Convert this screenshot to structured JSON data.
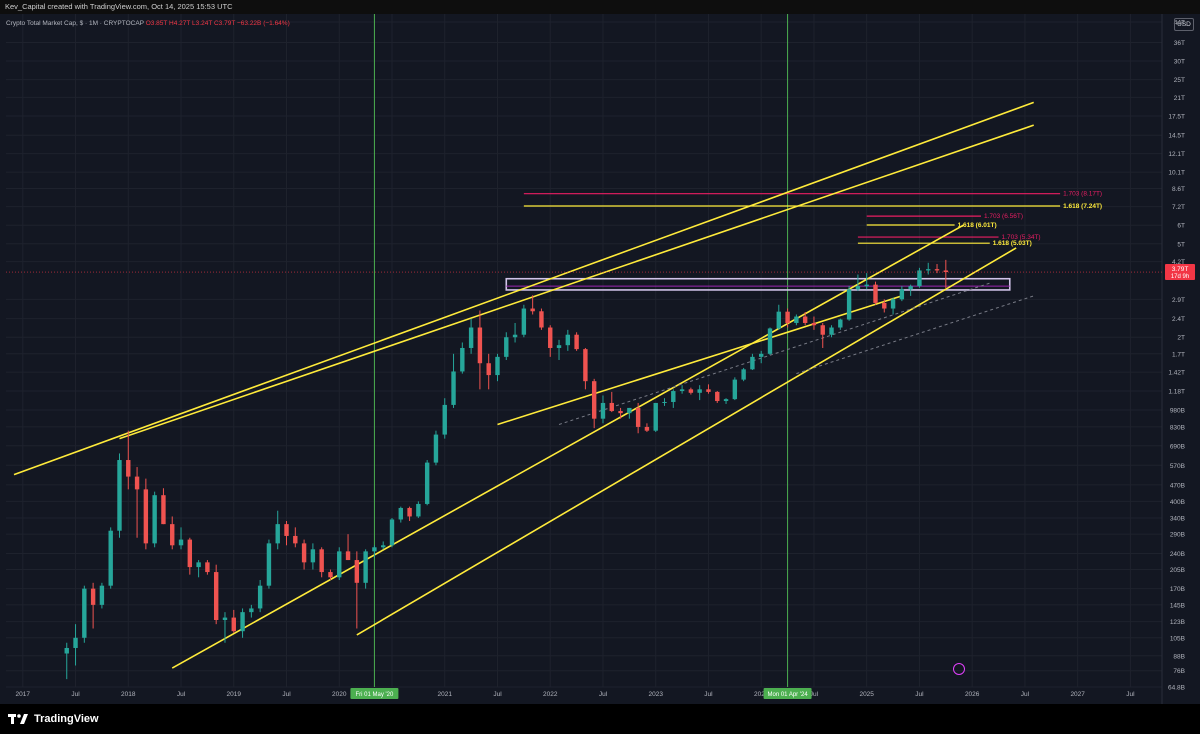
{
  "header": {
    "attribution": "Kev_Capital created with TradingView.com, Oct 14, 2025 15:53 UTC"
  },
  "legend": {
    "symbol": "Crypto Total Market Cap, $ · 1M · CRYPTOCAP",
    "ohlc": "O3.85T  H4.27T  L3.24T  C3.79T  −63.22B (−1.64%)"
  },
  "currency": "USD",
  "footer": {
    "brand": "TradingView",
    "icon": "tradingview-logo-icon"
  },
  "colors": {
    "background": "#131722",
    "up": "#26a69a",
    "down": "#ef5350",
    "trendline": "#ffeb3b",
    "vertical_marker": "#4caf50",
    "fib_pink": "#e91e63",
    "fib_yellow": "#ffeb3b",
    "zone": "#d1c4e9"
  },
  "chart_data": {
    "type": "candlestick",
    "scale": "log",
    "timeframe": "1M",
    "ylim": [
      64800000000,
      44000000000000
    ],
    "xlim": [
      "2016-12",
      "2027-09"
    ],
    "y_tick_labels": [
      "44T",
      "36T",
      "30T",
      "25T",
      "21T",
      "17.5T",
      "14.5T",
      "12.1T",
      "10.1T",
      "8.6T",
      "7.2T",
      "6T",
      "5T",
      "4.2T",
      "2.9T",
      "2.4T",
      "2T",
      "1.7T",
      "1.42T",
      "1.18T",
      "980B",
      "830B",
      "690B",
      "570B",
      "470B",
      "400B",
      "340B",
      "290B",
      "240B",
      "205B",
      "170B",
      "145B",
      "123B",
      "105B",
      "88B",
      "76B",
      "64.8B"
    ],
    "x_tick_labels": [
      "2017",
      "Jul",
      "2018",
      "Jul",
      "2019",
      "Jul",
      "2020",
      "Jul",
      "2021",
      "Jul",
      "2022",
      "Jul",
      "2023",
      "Jul",
      "2024",
      "Jul",
      "2025",
      "Jul",
      "2026",
      "Jul",
      "2027",
      "Jul"
    ],
    "last_price_label": "3.79T",
    "countdown_label": "17d 9h",
    "date_markers": [
      {
        "date": "2020-05",
        "label": "Fri 01 May '20"
      },
      {
        "date": "2024-04",
        "label": "Mon 01 Apr '24"
      }
    ],
    "fib_labels": [
      {
        "text": "1.703 (8.17T)",
        "price": 8170000000000.0,
        "color": "pink"
      },
      {
        "text": "1.618 (7.24T)",
        "price": 7240000000000.0,
        "color": "yellow"
      },
      {
        "text": "1.703 (6.56T)",
        "price": 6560000000000.0,
        "color": "pink"
      },
      {
        "text": "1.618 (6.01T)",
        "price": 6010000000000.0,
        "color": "yellow"
      },
      {
        "text": "1.703 (5.34T)",
        "price": 5340000000000.0,
        "color": "pink"
      },
      {
        "text": "1.618 (5.03T)",
        "price": 5030000000000.0,
        "color": "yellow"
      }
    ],
    "series": [
      {
        "name": "Crypto Total Market Cap",
        "candles": [
          [
            "2017-06",
            90000000000.0,
            100000000000.0,
            70000000000.0,
            95000000000.0
          ],
          [
            "2017-07",
            95000000000.0,
            120000000000.0,
            80000000000.0,
            105000000000.0
          ],
          [
            "2017-08",
            105000000000.0,
            175000000000.0,
            100000000000.0,
            170000000000.0
          ],
          [
            "2017-09",
            170000000000.0,
            180000000000.0,
            115000000000.0,
            145000000000.0
          ],
          [
            "2017-10",
            145000000000.0,
            180000000000.0,
            140000000000.0,
            175000000000.0
          ],
          [
            "2017-11",
            175000000000.0,
            310000000000.0,
            170000000000.0,
            300000000000.0
          ],
          [
            "2017-12",
            300000000000.0,
            640000000000.0,
            280000000000.0,
            600000000000.0
          ],
          [
            "2018-01",
            600000000000.0,
            800000000000.0,
            450000000000.0,
            510000000000.0
          ],
          [
            "2018-02",
            510000000000.0,
            560000000000.0,
            280000000000.0,
            450000000000.0
          ],
          [
            "2018-03",
            450000000000.0,
            500000000000.0,
            250000000000.0,
            265000000000.0
          ],
          [
            "2018-04",
            265000000000.0,
            440000000000.0,
            255000000000.0,
            425000000000.0
          ],
          [
            "2018-05",
            425000000000.0,
            455000000000.0,
            320000000000.0,
            320000000000.0
          ],
          [
            "2018-06",
            320000000000.0,
            345000000000.0,
            250000000000.0,
            260000000000.0
          ],
          [
            "2018-07",
            260000000000.0,
            310000000000.0,
            250000000000.0,
            275000000000.0
          ],
          [
            "2018-08",
            275000000000.0,
            280000000000.0,
            195000000000.0,
            210000000000.0
          ],
          [
            "2018-09",
            210000000000.0,
            225000000000.0,
            190000000000.0,
            220000000000.0
          ],
          [
            "2018-10",
            220000000000.0,
            225000000000.0,
            195000000000.0,
            200000000000.0
          ],
          [
            "2018-11",
            200000000000.0,
            215000000000.0,
            120000000000.0,
            125000000000.0
          ],
          [
            "2018-12",
            125000000000.0,
            135000000000.0,
            100000000000.0,
            128000000000.0
          ],
          [
            "2019-01",
            128000000000.0,
            138000000000.0,
            110000000000.0,
            112000000000.0
          ],
          [
            "2019-02",
            112000000000.0,
            140000000000.0,
            105000000000.0,
            135000000000.0
          ],
          [
            "2019-03",
            135000000000.0,
            145000000000.0,
            128000000000.0,
            140000000000.0
          ],
          [
            "2019-04",
            140000000000.0,
            185000000000.0,
            135000000000.0,
            175000000000.0
          ],
          [
            "2019-05",
            175000000000.0,
            275000000000.0,
            170000000000.0,
            265000000000.0
          ],
          [
            "2019-06",
            265000000000.0,
            365000000000.0,
            250000000000.0,
            320000000000.0
          ],
          [
            "2019-07",
            320000000000.0,
            330000000000.0,
            260000000000.0,
            285000000000.0
          ],
          [
            "2019-08",
            285000000000.0,
            310000000000.0,
            255000000000.0,
            265000000000.0
          ],
          [
            "2019-09",
            265000000000.0,
            275000000000.0,
            205000000000.0,
            220000000000.0
          ],
          [
            "2019-10",
            220000000000.0,
            265000000000.0,
            205000000000.0,
            250000000000.0
          ],
          [
            "2019-11",
            250000000000.0,
            255000000000.0,
            190000000000.0,
            200000000000.0
          ],
          [
            "2019-12",
            200000000000.0,
            205000000000.0,
            185000000000.0,
            190000000000.0
          ],
          [
            "2020-01",
            190000000000.0,
            255000000000.0,
            185000000000.0,
            245000000000.0
          ],
          [
            "2020-02",
            245000000000.0,
            290000000000.0,
            225000000000.0,
            225000000000.0
          ],
          [
            "2020-03",
            225000000000.0,
            245000000000.0,
            115000000000.0,
            180000000000.0
          ],
          [
            "2020-04",
            180000000000.0,
            250000000000.0,
            170000000000.0,
            245000000000.0
          ],
          [
            "2020-05",
            245000000000.0,
            260000000000.0,
            230000000000.0,
            255000000000.0
          ],
          [
            "2020-06",
            255000000000.0,
            270000000000.0,
            250000000000.0,
            260000000000.0
          ],
          [
            "2020-07",
            260000000000.0,
            340000000000.0,
            255000000000.0,
            335000000000.0
          ],
          [
            "2020-08",
            335000000000.0,
            380000000000.0,
            325000000000.0,
            375000000000.0
          ],
          [
            "2020-09",
            375000000000.0,
            380000000000.0,
            330000000000.0,
            345000000000.0
          ],
          [
            "2020-10",
            345000000000.0,
            400000000000.0,
            340000000000.0,
            390000000000.0
          ],
          [
            "2020-11",
            390000000000.0,
            600000000000.0,
            385000000000.0,
            585000000000.0
          ],
          [
            "2020-12",
            585000000000.0,
            800000000000.0,
            570000000000.0,
            770000000000.0
          ],
          [
            "2021-01",
            770000000000.0,
            1100000000000.0,
            740000000000.0,
            1030000000000.0
          ],
          [
            "2021-02",
            1030000000000.0,
            1700000000000.0,
            1000000000000.0,
            1430000000000.0
          ],
          [
            "2021-03",
            1430000000000.0,
            1900000000000.0,
            1400000000000.0,
            1800000000000.0
          ],
          [
            "2021-04",
            1800000000000.0,
            2400000000000.0,
            1700000000000.0,
            2200000000000.0
          ],
          [
            "2021-05",
            2200000000000.0,
            2600000000000.0,
            1200000000000.0,
            1550000000000.0
          ],
          [
            "2021-06",
            1550000000000.0,
            1700000000000.0,
            1200000000000.0,
            1380000000000.0
          ],
          [
            "2021-07",
            1380000000000.0,
            1700000000000.0,
            1300000000000.0,
            1650000000000.0
          ],
          [
            "2021-08",
            1650000000000.0,
            2100000000000.0,
            1600000000000.0,
            2000000000000.0
          ],
          [
            "2021-09",
            2000000000000.0,
            2300000000000.0,
            1900000000000.0,
            2050000000000.0
          ],
          [
            "2021-10",
            2050000000000.0,
            2750000000000.0,
            2000000000000.0,
            2650000000000.0
          ],
          [
            "2021-11",
            2650000000000.0,
            3020000000000.0,
            2500000000000.0,
            2580000000000.0
          ],
          [
            "2021-12",
            2580000000000.0,
            2650000000000.0,
            2150000000000.0,
            2200000000000.0
          ],
          [
            "2022-01",
            2200000000000.0,
            2250000000000.0,
            1650000000000.0,
            1800000000000.0
          ],
          [
            "2022-02",
            1800000000000.0,
            1950000000000.0,
            1600000000000.0,
            1850000000000.0
          ],
          [
            "2022-03",
            1850000000000.0,
            2150000000000.0,
            1750000000000.0,
            2050000000000.0
          ],
          [
            "2022-04",
            2050000000000.0,
            2100000000000.0,
            1750000000000.0,
            1780000000000.0
          ],
          [
            "2022-05",
            1780000000000.0,
            1800000000000.0,
            1200000000000.0,
            1300000000000.0
          ],
          [
            "2022-06",
            1300000000000.0,
            1330000000000.0,
            820000000000.0,
            900000000000.0
          ],
          [
            "2022-07",
            900000000000.0,
            1130000000000.0,
            860000000000.0,
            1050000000000.0
          ],
          [
            "2022-08",
            1050000000000.0,
            1170000000000.0,
            960000000000.0,
            970000000000.0
          ],
          [
            "2022-09",
            970000000000.0,
            1000000000000.0,
            900000000000.0,
            950000000000.0
          ],
          [
            "2022-10",
            950000000000.0,
            1000000000000.0,
            900000000000.0,
            1000000000000.0
          ],
          [
            "2022-11",
            1000000000000.0,
            1050000000000.0,
            780000000000.0,
            830000000000.0
          ],
          [
            "2022-12",
            830000000000.0,
            860000000000.0,
            790000000000.0,
            800000000000.0
          ],
          [
            "2023-01",
            800000000000.0,
            1050000000000.0,
            790000000000.0,
            1050000000000.0
          ],
          [
            "2023-02",
            1050000000000.0,
            1100000000000.0,
            1020000000000.0,
            1060000000000.0
          ],
          [
            "2023-03",
            1060000000000.0,
            1200000000000.0,
            1000000000000.0,
            1180000000000.0
          ],
          [
            "2023-04",
            1180000000000.0,
            1250000000000.0,
            1150000000000.0,
            1200000000000.0
          ],
          [
            "2023-05",
            1200000000000.0,
            1220000000000.0,
            1140000000000.0,
            1160000000000.0
          ],
          [
            "2023-06",
            1160000000000.0,
            1250000000000.0,
            1080000000000.0,
            1200000000000.0
          ],
          [
            "2023-07",
            1200000000000.0,
            1260000000000.0,
            1150000000000.0,
            1170000000000.0
          ],
          [
            "2023-08",
            1170000000000.0,
            1180000000000.0,
            1050000000000.0,
            1070000000000.0
          ],
          [
            "2023-09",
            1070000000000.0,
            1100000000000.0,
            1040000000000.0,
            1090000000000.0
          ],
          [
            "2023-10",
            1090000000000.0,
            1350000000000.0,
            1080000000000.0,
            1320000000000.0
          ],
          [
            "2023-11",
            1320000000000.0,
            1480000000000.0,
            1300000000000.0,
            1460000000000.0
          ],
          [
            "2023-12",
            1460000000000.0,
            1700000000000.0,
            1450000000000.0,
            1650000000000.0
          ],
          [
            "2024-01",
            1650000000000.0,
            1750000000000.0,
            1550000000000.0,
            1700000000000.0
          ],
          [
            "2024-02",
            1700000000000.0,
            2200000000000.0,
            1680000000000.0,
            2180000000000.0
          ],
          [
            "2024-03",
            2180000000000.0,
            2750000000000.0,
            2150000000000.0,
            2570000000000.0
          ],
          [
            "2024-04",
            2570000000000.0,
            2650000000000.0,
            2200000000000.0,
            2300000000000.0
          ],
          [
            "2024-05",
            2300000000000.0,
            2500000000000.0,
            2250000000000.0,
            2450000000000.0
          ],
          [
            "2024-06",
            2450000000000.0,
            2560000000000.0,
            2250000000000.0,
            2300000000000.0
          ],
          [
            "2024-07",
            2300000000000.0,
            2450000000000.0,
            2150000000000.0,
            2250000000000.0
          ],
          [
            "2024-08",
            2250000000000.0,
            2300000000000.0,
            1800000000000.0,
            2050000000000.0
          ],
          [
            "2024-09",
            2050000000000.0,
            2250000000000.0,
            2000000000000.0,
            2200000000000.0
          ],
          [
            "2024-10",
            2200000000000.0,
            2400000000000.0,
            2150000000000.0,
            2380000000000.0
          ],
          [
            "2024-11",
            2380000000000.0,
            3300000000000.0,
            2350000000000.0,
            3200000000000.0
          ],
          [
            "2024-12",
            3200000000000.0,
            3700000000000.0,
            3150000000000.0,
            3300000000000.0
          ],
          [
            "2025-01",
            3300000000000.0,
            3750000000000.0,
            3200000000000.0,
            3350000000000.0
          ],
          [
            "2025-02",
            3350000000000.0,
            3450000000000.0,
            2750000000000.0,
            2800000000000.0
          ],
          [
            "2025-03",
            2800000000000.0,
            2900000000000.0,
            2550000000000.0,
            2650000000000.0
          ],
          [
            "2025-04",
            2650000000000.0,
            2950000000000.0,
            2500000000000.0,
            2900000000000.0
          ],
          [
            "2025-05",
            2900000000000.0,
            3300000000000.0,
            2850000000000.0,
            3200000000000.0
          ],
          [
            "2025-06",
            3200000000000.0,
            3350000000000.0,
            3000000000000.0,
            3300000000000.0
          ],
          [
            "2025-07",
            3300000000000.0,
            3950000000000.0,
            3250000000000.0,
            3850000000000.0
          ],
          [
            "2025-08",
            3850000000000.0,
            4150000000000.0,
            3700000000000.0,
            3900000000000.0
          ],
          [
            "2025-09",
            3900000000000.0,
            4100000000000.0,
            3750000000000.0,
            3850000000000.0
          ],
          [
            "2025-10",
            3850000000000.0,
            4270000000000.0,
            3240000000000.0,
            3790000000000.0
          ]
        ]
      }
    ]
  }
}
